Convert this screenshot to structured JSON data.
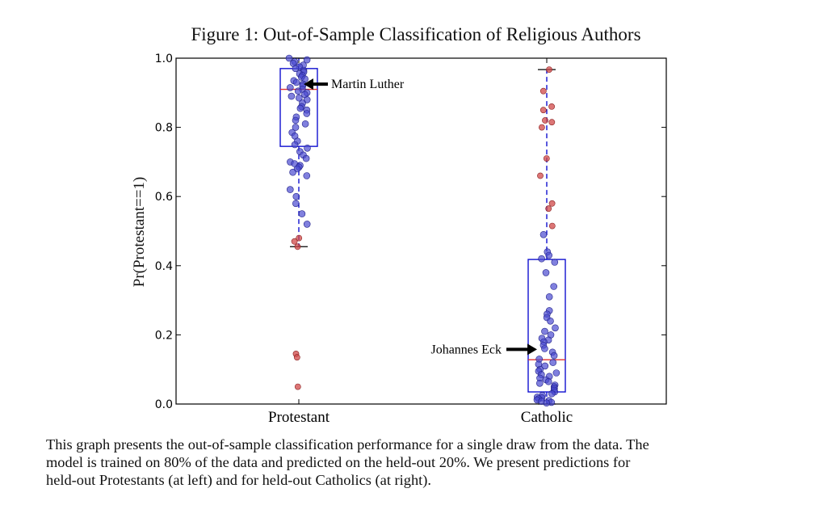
{
  "figure_title": "Figure 1: Out-of-Sample Classification of Religious Authors",
  "caption": [
    "This graph presents the out-of-sample classification performance for a single draw from the data. The",
    "model is trained on 80% of the data and predicted on the held-out 20%. We present predictions for",
    "held-out Protestants (at left) and for held-out Catholics (at right)."
  ],
  "chart_data": {
    "type": "boxplot-jitter",
    "ylabel": "Pr(Protestant==1)",
    "ylim": [
      0,
      1
    ],
    "yticks": [
      "0.0",
      "0.2",
      "0.4",
      "0.6",
      "0.8",
      "1.0"
    ],
    "categories": [
      "Protestant",
      "Catholic"
    ],
    "colors": {
      "correct": "#4a4ad0",
      "incorrect": "#d04848",
      "box": "#1010d0",
      "median": "#e03030"
    },
    "boxes": [
      {
        "category": "Protestant",
        "q1": 0.745,
        "median": 0.91,
        "q3": 0.97,
        "whisker_low": 0.455,
        "whisker_high": 1.0
      },
      {
        "category": "Catholic",
        "q1": 0.035,
        "median": 0.128,
        "q3": 0.418,
        "whisker_low": 0.0,
        "whisker_high": 0.967
      }
    ],
    "series": [
      {
        "name": "Protestant",
        "correct": [
          1.0,
          0.995,
          0.99,
          0.985,
          0.98,
          0.975,
          0.97,
          0.965,
          0.96,
          0.955,
          0.95,
          0.945,
          0.94,
          0.935,
          0.93,
          0.925,
          0.92,
          0.915,
          0.91,
          0.905,
          0.9,
          0.895,
          0.89,
          0.885,
          0.88,
          0.87,
          0.86,
          0.855,
          0.85,
          0.84,
          0.83,
          0.82,
          0.81,
          0.8,
          0.785,
          0.775,
          0.76,
          0.75,
          0.74,
          0.73,
          0.72,
          0.71,
          0.7,
          0.695,
          0.69,
          0.685,
          0.68,
          0.67,
          0.66,
          0.62,
          0.6,
          0.58,
          0.55,
          0.52
        ],
        "incorrect": [
          0.48,
          0.47,
          0.455,
          0.145,
          0.135,
          0.05
        ]
      },
      {
        "name": "Catholic",
        "correct": [
          0.49,
          0.44,
          0.43,
          0.42,
          0.41,
          0.38,
          0.34,
          0.31,
          0.27,
          0.26,
          0.25,
          0.24,
          0.22,
          0.21,
          0.2,
          0.19,
          0.185,
          0.18,
          0.17,
          0.16,
          0.15,
          0.14,
          0.13,
          0.12,
          0.115,
          0.11,
          0.1,
          0.095,
          0.09,
          0.085,
          0.08,
          0.075,
          0.07,
          0.065,
          0.06,
          0.055,
          0.05,
          0.045,
          0.04,
          0.035,
          0.03,
          0.025,
          0.02,
          0.018,
          0.015,
          0.012,
          0.01,
          0.008,
          0.005,
          0.003
        ],
        "incorrect": [
          0.967,
          0.905,
          0.86,
          0.85,
          0.82,
          0.815,
          0.8,
          0.71,
          0.66,
          0.58,
          0.565,
          0.515
        ]
      }
    ],
    "annotations": [
      {
        "text": "Martin Luther",
        "category": "Protestant",
        "y": 0.925,
        "side": "right"
      },
      {
        "text": "Johannes Eck",
        "category": "Catholic",
        "y": 0.158,
        "side": "left"
      }
    ]
  }
}
